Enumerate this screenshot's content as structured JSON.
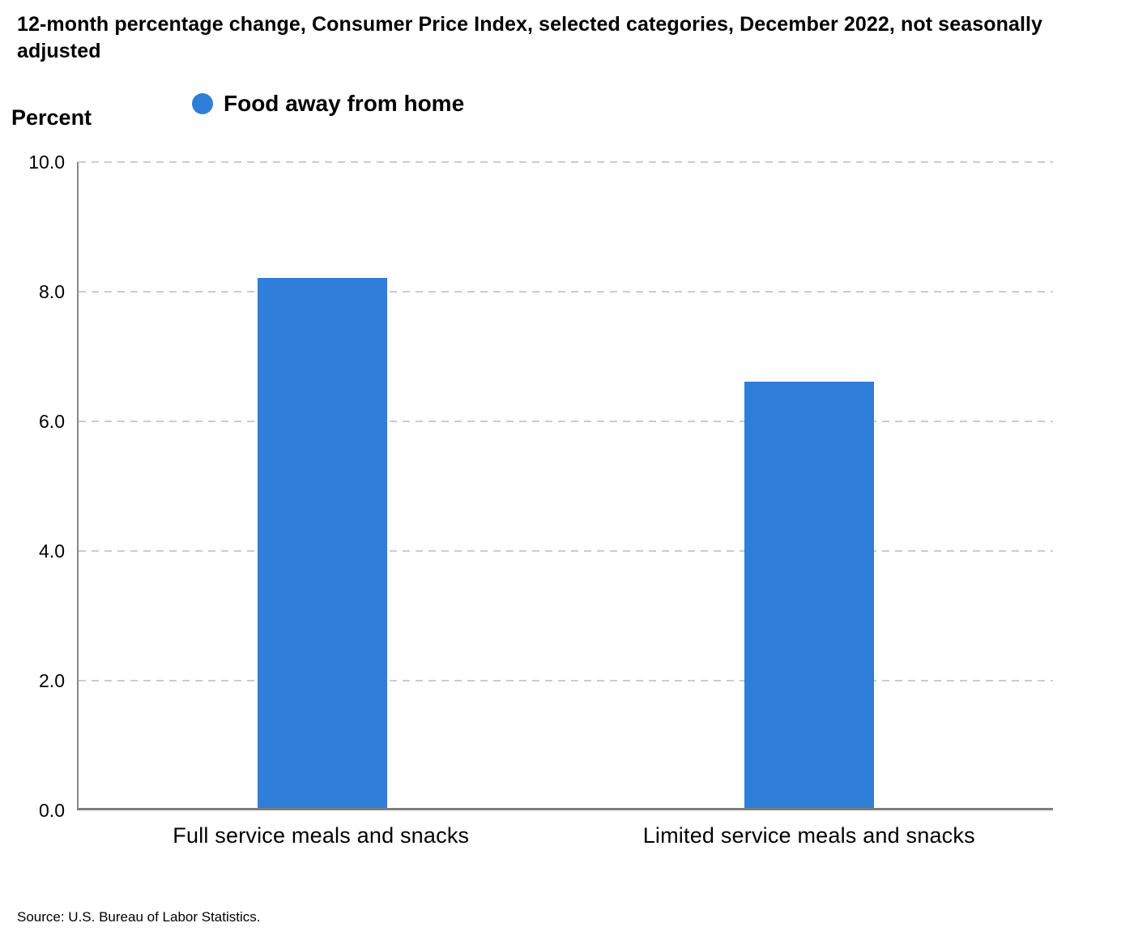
{
  "title": "12-month percentage change, Consumer Price Index, selected categories, December 2022, not seasonally adjusted",
  "source": "Source: U.S. Bureau of Labor Statistics.",
  "colors": {
    "bar": "#2f7ed8",
    "gridline": "#cccccc",
    "axis_line": "#7d7d7d"
  },
  "chart_data": {
    "type": "bar",
    "title": "12-month percentage change, Consumer Price Index, selected categories, December 2022, not seasonally adjusted",
    "categories": [
      "Full service meals and snacks",
      "Limited service meals and snacks"
    ],
    "series": [
      {
        "name": "Food away from home",
        "values": [
          8.2,
          6.6
        ]
      }
    ],
    "xlabel": "",
    "ylabel": "Percent",
    "ylim": [
      0,
      10
    ],
    "ytick_interval": 2.0,
    "yticks": [
      "10.0",
      "8.0",
      "6.0",
      "4.0",
      "2.0",
      "0.0"
    ],
    "grid": "horizontal dashed",
    "legend_position": "top",
    "footer": "Source: U.S. Bureau of Labor Statistics."
  }
}
